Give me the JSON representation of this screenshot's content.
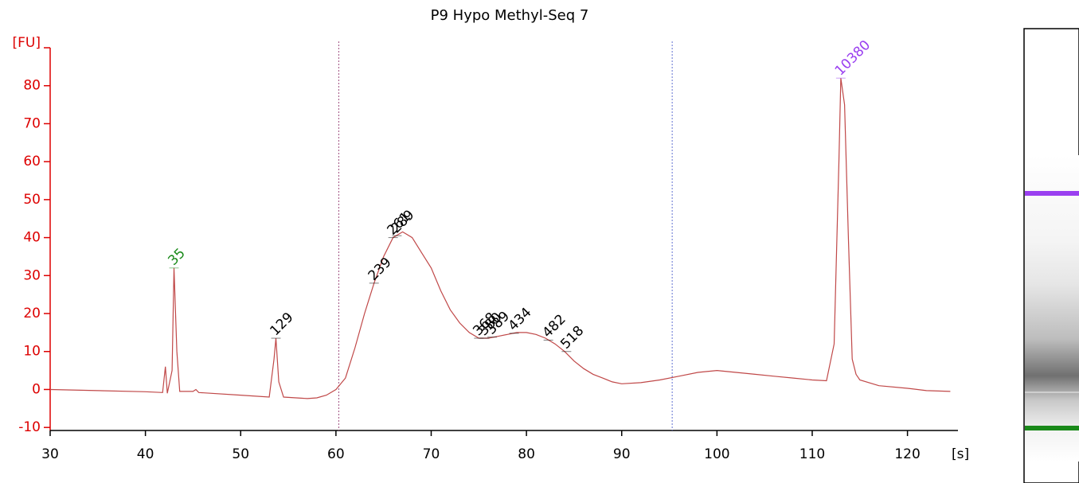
{
  "chart_data": {
    "type": "line",
    "title": "P9 Hypo Methyl-Seq 7",
    "x_label": "[s]",
    "y_label": "[FU]",
    "xlim": [
      30,
      125.3
    ],
    "ylim": [
      -10.8,
      90
    ],
    "xticks": [
      30,
      40,
      50,
      60,
      70,
      80,
      90,
      100,
      110,
      120
    ],
    "yticks": [
      -10,
      0,
      10,
      20,
      30,
      40,
      50,
      60,
      70,
      80
    ],
    "axis_color": "#dd0000",
    "series": [
      {
        "color": "#c04848",
        "x": [
          30,
          35,
          40,
          41.8,
          42.1,
          42.3,
          42.8,
          43,
          43.3,
          43.6,
          45,
          45.3,
          45.6,
          50,
          53,
          53.5,
          53.7,
          54,
          54.5,
          57,
          58,
          59,
          60,
          61,
          62,
          63,
          64,
          65,
          66,
          67,
          68,
          69,
          70,
          71,
          72,
          73,
          74,
          75,
          76,
          77,
          78,
          79,
          80,
          81,
          82,
          83,
          84,
          85,
          86,
          87,
          88,
          89,
          90,
          92,
          94,
          96,
          98,
          100,
          102,
          104,
          106,
          108,
          110,
          111.5,
          112.3,
          112.8,
          113,
          113.4,
          113.8,
          114.2,
          114.6,
          115,
          117,
          120,
          122,
          124.5
        ],
        "values": [
          0,
          -0.3,
          -0.6,
          -0.8,
          6,
          -1,
          5,
          32,
          10,
          -0.5,
          -0.5,
          0,
          -0.8,
          -1.5,
          -2,
          8,
          13.5,
          2,
          -2,
          -2.4,
          -2.2,
          -1.5,
          0,
          3,
          11,
          20,
          28,
          35,
          40,
          41.5,
          40,
          36,
          32,
          26,
          21,
          17.5,
          15,
          13.5,
          13.5,
          14,
          14.5,
          15,
          15,
          14.5,
          13.5,
          12,
          10,
          7.5,
          5.5,
          4,
          3,
          2,
          1.5,
          1.8,
          2.5,
          3.5,
          4.5,
          5,
          4.5,
          4,
          3.5,
          3,
          2.5,
          2.3,
          12,
          60,
          82,
          75,
          40,
          8,
          4,
          2.5,
          1,
          0.3,
          -0.3,
          -0.5
        ]
      }
    ],
    "regions": [
      {
        "x": 60.3,
        "color": "#a05080"
      },
      {
        "x": 95.3,
        "color": "#6070d0"
      }
    ],
    "peaks": [
      {
        "label": "35",
        "x": 43,
        "y": 32,
        "color": "#1a8a1a"
      },
      {
        "label": "129",
        "x": 53.7,
        "y": 13.5,
        "color": "#000000"
      },
      {
        "label": "239",
        "x": 64,
        "y": 28,
        "color": "#000000"
      },
      {
        "label": "261",
        "x": 66,
        "y": 40,
        "color": "#000000"
      },
      {
        "label": "289",
        "x": 66.4,
        "y": 40.5,
        "color": "#000000"
      },
      {
        "label": "368",
        "x": 75,
        "y": 13.5,
        "color": "#000000"
      },
      {
        "label": "380",
        "x": 75.6,
        "y": 13.5,
        "color": "#000000"
      },
      {
        "label": "389",
        "x": 76.4,
        "y": 13.8,
        "color": "#000000"
      },
      {
        "label": "434",
        "x": 78.7,
        "y": 14.8,
        "color": "#000000"
      },
      {
        "label": "482",
        "x": 82.3,
        "y": 13,
        "color": "#000000"
      },
      {
        "label": "518",
        "x": 84.2,
        "y": 10,
        "color": "#000000"
      },
      {
        "label": "10380",
        "x": 113,
        "y": 82,
        "color": "#9a3ff0"
      }
    ]
  }
}
